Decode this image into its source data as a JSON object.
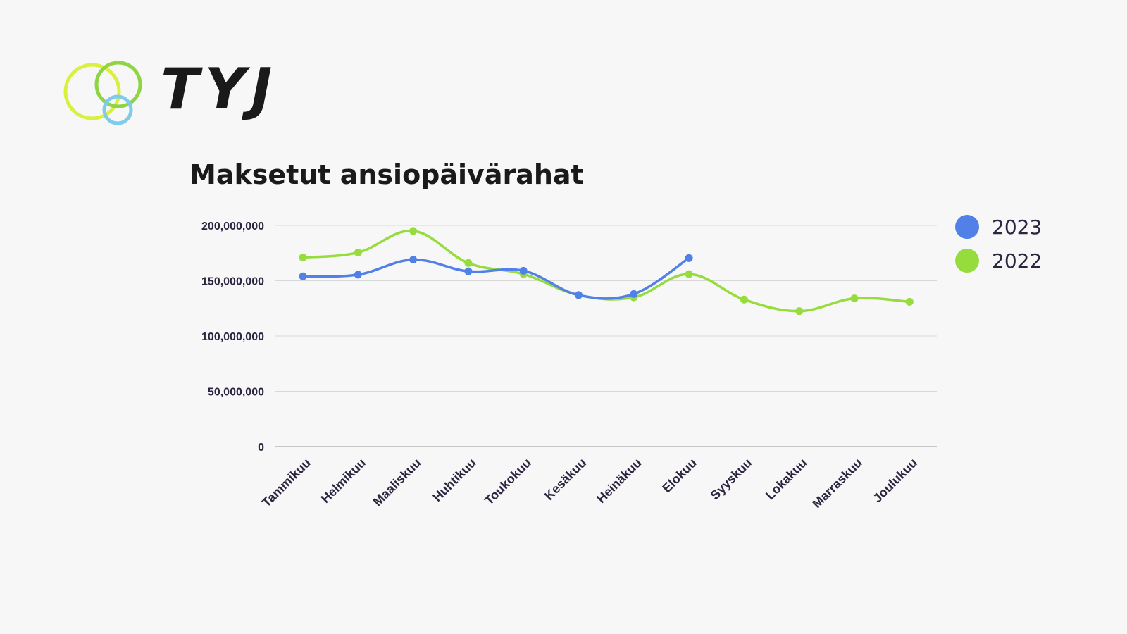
{
  "logo": {
    "text": "TYJ"
  },
  "chart_data": {
    "type": "line",
    "title": "Maksetut ansiopäivärahat",
    "categories": [
      "Tammikuu",
      "Helmikuu",
      "Maaliskuu",
      "Huhtikuu",
      "Toukokuu",
      "Kesäkuu",
      "Heinäkuu",
      "Elokuu",
      "Syyskuu",
      "Lokakuu",
      "Marraskuu",
      "Joulukuu"
    ],
    "ylim": [
      0,
      200000000
    ],
    "yticks": [
      0,
      50000000,
      100000000,
      150000000,
      200000000
    ],
    "ytick_labels": [
      "0",
      "50,000,000",
      "100,000,000",
      "150,000,000",
      "200,000,000"
    ],
    "grid": true,
    "legend_position": "right",
    "series": [
      {
        "name": "2023",
        "color": "#5080e8",
        "values": [
          154000000,
          155500000,
          169000000,
          158500000,
          159000000,
          137000000,
          138000000,
          170500000,
          null,
          null,
          null,
          null
        ]
      },
      {
        "name": "2022",
        "color": "#96dc3c",
        "values": [
          171000000,
          175500000,
          195000000,
          166000000,
          156000000,
          137000000,
          135000000,
          156000000,
          133000000,
          122500000,
          134000000,
          131000000
        ]
      }
    ]
  }
}
